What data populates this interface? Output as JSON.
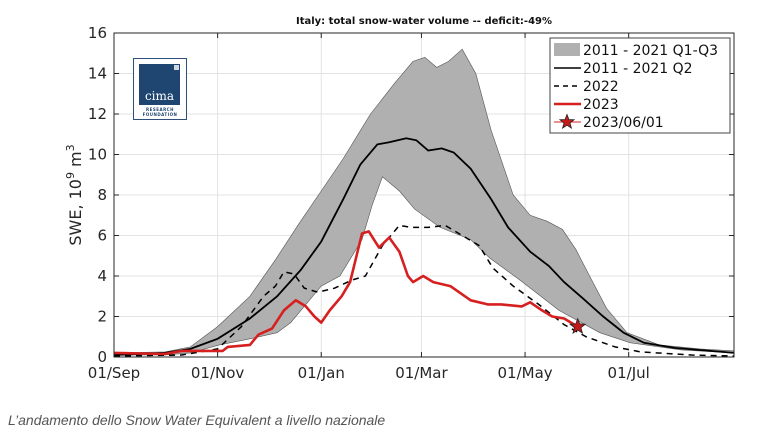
{
  "caption": "L’andamento dello Snow Water Equivalent a livello nazionale",
  "logo": {
    "name": "cima",
    "subtitle_line1": "RESEARCH",
    "subtitle_line2": "FOUNDATION"
  },
  "chart_data": {
    "type": "area",
    "title": "Italy: total snow-water volume -- deficit:-49%",
    "xlabel": "",
    "ylabel": "SWE, 10^9 m^3",
    "ylabel_parts": {
      "base": "SWE, 10",
      "exp1": "9",
      "mid": " m",
      "exp2": "3"
    },
    "x_unit": "days since 01/Sep",
    "xlim": [
      0,
      365
    ],
    "ylim": [
      0,
      16
    ],
    "grid": true,
    "legend_position": "top-right",
    "xticks": [
      {
        "day": 0,
        "label": "01/Sep"
      },
      {
        "day": 61,
        "label": "01/Nov"
      },
      {
        "day": 122,
        "label": "01/Jan"
      },
      {
        "day": 181,
        "label": "01/Mar"
      },
      {
        "day": 242,
        "label": "01/May"
      },
      {
        "day": 303,
        "label": "01/Jul"
      }
    ],
    "yticks": [
      0,
      2,
      4,
      6,
      8,
      10,
      12,
      14,
      16
    ],
    "legend": [
      {
        "label": "2011 - 2021 Q1-Q3",
        "style": "band"
      },
      {
        "label": "2011 - 2021 Q2",
        "style": "solid"
      },
      {
        "label": "2022",
        "style": "dashed"
      },
      {
        "label": "2023",
        "style": "red"
      },
      {
        "label": "2023/06/01",
        "style": "star"
      }
    ],
    "colors": {
      "band": "#b0b0b0",
      "median": "#000000",
      "y2022": "#000000",
      "y2023": "#d62020",
      "star": "#c41a1a"
    },
    "band_q3": [
      [
        0,
        0.2
      ],
      [
        30,
        0.25
      ],
      [
        45,
        0.5
      ],
      [
        61,
        1.5
      ],
      [
        80,
        3.0
      ],
      [
        95,
        4.8
      ],
      [
        109,
        6.6
      ],
      [
        122,
        8.2
      ],
      [
        135,
        9.8
      ],
      [
        151,
        12.0
      ],
      [
        165,
        13.5
      ],
      [
        176,
        14.6
      ],
      [
        183,
        14.8
      ],
      [
        190,
        14.3
      ],
      [
        197,
        14.6
      ],
      [
        205,
        15.2
      ],
      [
        213,
        14.0
      ],
      [
        222,
        11.2
      ],
      [
        235,
        8.0
      ],
      [
        245,
        7.0
      ],
      [
        255,
        6.7
      ],
      [
        264,
        6.3
      ],
      [
        272,
        5.3
      ],
      [
        280,
        4.0
      ],
      [
        290,
        2.4
      ],
      [
        302,
        1.2
      ],
      [
        321,
        0.6
      ],
      [
        345,
        0.4
      ],
      [
        365,
        0.3
      ]
    ],
    "band_q1": [
      [
        0,
        0.1
      ],
      [
        30,
        0.1
      ],
      [
        45,
        0.2
      ],
      [
        62,
        0.6
      ],
      [
        80,
        0.9
      ],
      [
        96,
        1.2
      ],
      [
        104,
        1.7
      ],
      [
        113,
        2.6
      ],
      [
        122,
        3.5
      ],
      [
        133,
        4.0
      ],
      [
        146,
        5.8
      ],
      [
        152,
        7.5
      ],
      [
        158,
        8.9
      ],
      [
        168,
        8.2
      ],
      [
        177,
        7.3
      ],
      [
        192,
        6.4
      ],
      [
        210,
        5.8
      ],
      [
        221,
        4.9
      ],
      [
        239,
        3.8
      ],
      [
        262,
        2.3
      ],
      [
        286,
        1.2
      ],
      [
        304,
        0.7
      ],
      [
        334,
        0.35
      ],
      [
        365,
        0.2
      ]
    ],
    "series": [
      {
        "name": "2011 - 2021 Q2",
        "points": [
          [
            0,
            0.1
          ],
          [
            30,
            0.2
          ],
          [
            45,
            0.4
          ],
          [
            61,
            0.9
          ],
          [
            80,
            1.9
          ],
          [
            96,
            3.0
          ],
          [
            110,
            4.3
          ],
          [
            122,
            5.7
          ],
          [
            135,
            7.8
          ],
          [
            145,
            9.5
          ],
          [
            155,
            10.5
          ],
          [
            162,
            10.6
          ],
          [
            172,
            10.8
          ],
          [
            178,
            10.7
          ],
          [
            185,
            10.2
          ],
          [
            193,
            10.3
          ],
          [
            200,
            10.1
          ],
          [
            210,
            9.3
          ],
          [
            222,
            7.8
          ],
          [
            232,
            6.4
          ],
          [
            245,
            5.2
          ],
          [
            256,
            4.5
          ],
          [
            265,
            3.7
          ],
          [
            276,
            2.9
          ],
          [
            288,
            2.0
          ],
          [
            300,
            1.2
          ],
          [
            312,
            0.7
          ],
          [
            330,
            0.45
          ],
          [
            365,
            0.2
          ]
        ]
      },
      {
        "name": "2022",
        "points": [
          [
            0,
            0.05
          ],
          [
            40,
            0.1
          ],
          [
            61,
            0.4
          ],
          [
            75,
            1.5
          ],
          [
            88,
            3.0
          ],
          [
            95,
            3.5
          ],
          [
            100,
            4.2
          ],
          [
            106,
            4.1
          ],
          [
            112,
            3.4
          ],
          [
            120,
            3.2
          ],
          [
            130,
            3.4
          ],
          [
            140,
            3.8
          ],
          [
            148,
            4.0
          ],
          [
            158,
            5.5
          ],
          [
            168,
            6.5
          ],
          [
            175,
            6.4
          ],
          [
            185,
            6.4
          ],
          [
            195,
            6.5
          ],
          [
            205,
            6.0
          ],
          [
            215,
            5.5
          ],
          [
            223,
            4.4
          ],
          [
            235,
            3.5
          ],
          [
            250,
            2.6
          ],
          [
            265,
            1.6
          ],
          [
            278,
            1.0
          ],
          [
            295,
            0.5
          ],
          [
            310,
            0.25
          ],
          [
            340,
            0.1
          ],
          [
            365,
            0.05
          ]
        ]
      },
      {
        "name": "2023",
        "points": [
          [
            0,
            0.2
          ],
          [
            30,
            0.15
          ],
          [
            40,
            0.3
          ],
          [
            64,
            0.3
          ],
          [
            67,
            0.5
          ],
          [
            80,
            0.6
          ],
          [
            85,
            1.1
          ],
          [
            93,
            1.4
          ],
          [
            100,
            2.3
          ],
          [
            107,
            2.8
          ],
          [
            113,
            2.5
          ],
          [
            118,
            2.0
          ],
          [
            122,
            1.7
          ],
          [
            127,
            2.3
          ],
          [
            134,
            3.0
          ],
          [
            139,
            3.7
          ],
          [
            146,
            6.1
          ],
          [
            150,
            6.2
          ],
          [
            156,
            5.4
          ],
          [
            162,
            5.9
          ],
          [
            168,
            5.2
          ],
          [
            173,
            4.0
          ],
          [
            176,
            3.7
          ],
          [
            182,
            4.0
          ],
          [
            188,
            3.7
          ],
          [
            198,
            3.5
          ],
          [
            210,
            2.8
          ],
          [
            220,
            2.6
          ],
          [
            228,
            2.6
          ],
          [
            240,
            2.5
          ],
          [
            245,
            2.7
          ],
          [
            252,
            2.3
          ],
          [
            258,
            2.0
          ],
          [
            265,
            1.9
          ],
          [
            273,
            1.5
          ]
        ]
      }
    ],
    "marker": {
      "label": "2023/06/01",
      "day": 273,
      "value": 1.5
    }
  }
}
